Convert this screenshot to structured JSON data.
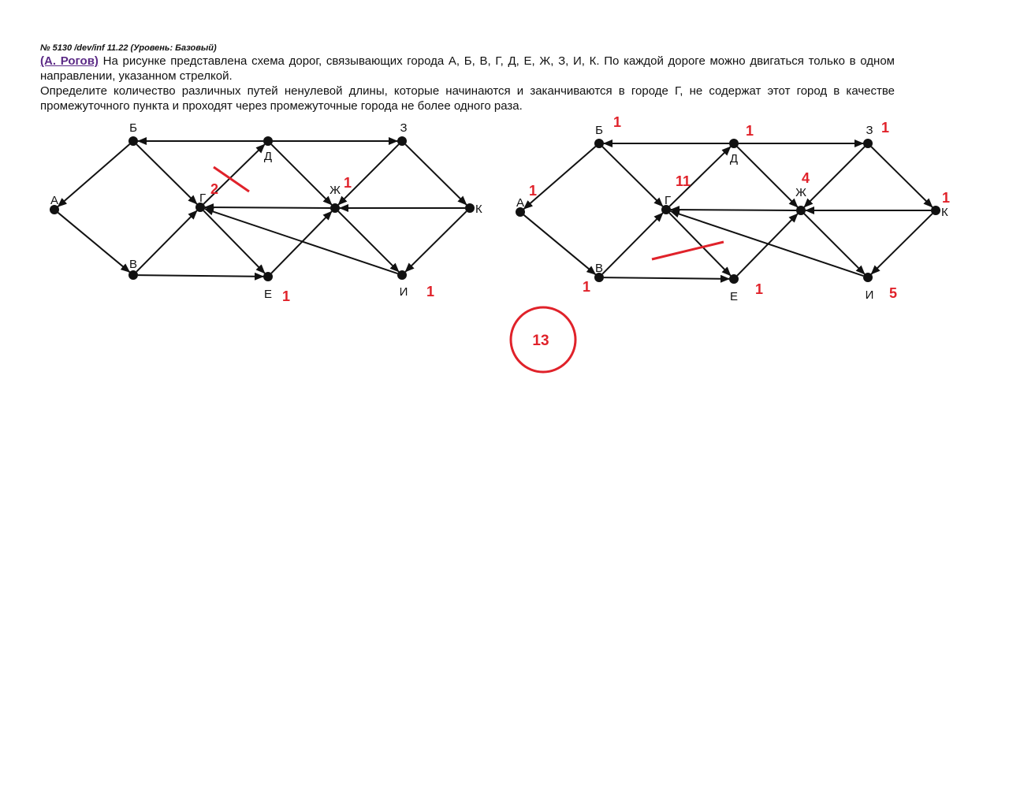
{
  "problem": {
    "id_line": "№ 5130 /dev/inf 11.22 (Уровень: Базовый)",
    "author": "(А. Рогов)",
    "text1": " На рисунке представлена схема дорог, связывающих города А, Б, В, Г, Д, Е, Ж, З, И, К. По каждой дороге можно двигаться только в одном направлении, указанном стрелкой.",
    "text2": "Определите количество различных путей ненулевой длины, которые начинаются и заканчиваются в городе Г, не содержат этот город в качестве промежуточного пункта и проходят через промежуточные города не более одного раза."
  },
  "node_labels": {
    "A": "А",
    "B": "Б",
    "V": "В",
    "G": "Г",
    "D": "Д",
    "E": "Е",
    "Zh": "Ж",
    "Z": "З",
    "I": "И",
    "K": "К"
  },
  "annotations": {
    "left": {
      "G": "2",
      "Zh": "1",
      "E": "1",
      "I": "1"
    },
    "right": {
      "B": "1",
      "D": "1",
      "Z": "1",
      "A": "1",
      "G": "11",
      "Zh": "4",
      "K": "1",
      "V": "1",
      "E": "1",
      "I": "5"
    },
    "answer": "13",
    "color": "#e0222a"
  },
  "edges": [
    [
      "D",
      "B"
    ],
    [
      "D",
      "Z"
    ],
    [
      "B",
      "A"
    ],
    [
      "B",
      "G"
    ],
    [
      "A",
      "V"
    ],
    [
      "V",
      "G"
    ],
    [
      "V",
      "E"
    ],
    [
      "G",
      "D"
    ],
    [
      "G",
      "E"
    ],
    [
      "D",
      "Zh"
    ],
    [
      "E",
      "Zh"
    ],
    [
      "Zh",
      "G"
    ],
    [
      "Zh",
      "I"
    ],
    [
      "Z",
      "Zh"
    ],
    [
      "Z",
      "K"
    ],
    [
      "K",
      "Zh"
    ],
    [
      "K",
      "I"
    ],
    [
      "I",
      "G"
    ]
  ]
}
